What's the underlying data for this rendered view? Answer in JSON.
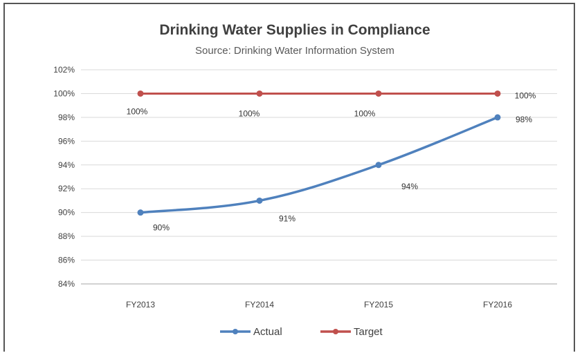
{
  "chart_data": {
    "type": "line",
    "title": "Drinking Water Supplies in Compliance",
    "subtitle": "Source: Drinking Water Information System",
    "categories": [
      "FY2013",
      "FY2014",
      "FY2015",
      "FY2016"
    ],
    "y_ticks": [
      "84%",
      "86%",
      "88%",
      "90%",
      "92%",
      "94%",
      "96%",
      "98%",
      "100%",
      "102%"
    ],
    "ylim": [
      84,
      102
    ],
    "grid": true,
    "legend_position": "bottom",
    "series": [
      {
        "name": "Actual",
        "color": "#4f81bd",
        "values": [
          90,
          91,
          94,
          98
        ],
        "labels": [
          "90%",
          "91%",
          "94%",
          "98%"
        ]
      },
      {
        "name": "Target",
        "color": "#c0504d",
        "values": [
          100,
          100,
          100,
          100
        ],
        "labels": [
          "100%",
          "100%",
          "100%",
          "100%"
        ]
      }
    ]
  }
}
